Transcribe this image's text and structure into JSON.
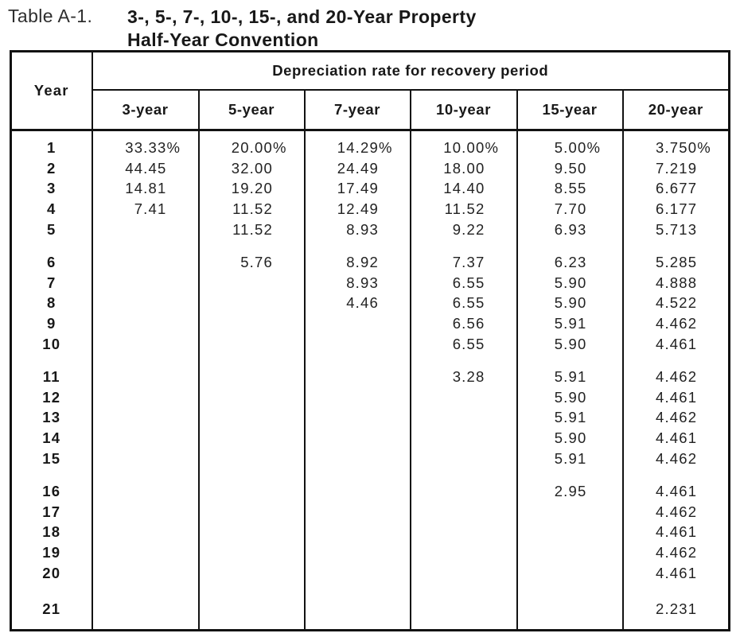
{
  "page": {
    "background": "#ffffff",
    "text_color": "#1f1f1f",
    "border_color": "#121212"
  },
  "title": {
    "label": "Table A-1.",
    "line1": "3-, 5-, 7-, 10-, 15-, and 20-Year Property",
    "line2": "Half-Year Convention"
  },
  "table": {
    "year_header": "Year",
    "span_header": "Depreciation rate for recovery period",
    "columns": [
      "3-year",
      "5-year",
      "7-year",
      "10-year",
      "15-year",
      "20-year"
    ],
    "column_align_widths": [
      "w5",
      "w5",
      "w5",
      "w5",
      "w4",
      "w5"
    ],
    "groups": [
      [
        {
          "year": "1",
          "values": [
            "33.33%",
            "20.00%",
            "14.29%",
            "10.00%",
            "5.00%",
            "3.750%"
          ]
        },
        {
          "year": "2",
          "values": [
            "44.45",
            "32.00",
            "24.49",
            "18.00",
            "9.50",
            "7.219"
          ]
        },
        {
          "year": "3",
          "values": [
            "14.81",
            "19.20",
            "17.49",
            "14.40",
            "8.55",
            "6.677"
          ]
        },
        {
          "year": "4",
          "values": [
            "7.41",
            "11.52",
            "12.49",
            "11.52",
            "7.70",
            "6.177"
          ]
        },
        {
          "year": "5",
          "values": [
            "",
            "11.52",
            "8.93",
            "9.22",
            "6.93",
            "5.713"
          ]
        }
      ],
      [
        {
          "year": "6",
          "values": [
            "",
            "5.76",
            "8.92",
            "7.37",
            "6.23",
            "5.285"
          ]
        },
        {
          "year": "7",
          "values": [
            "",
            "",
            "8.93",
            "6.55",
            "5.90",
            "4.888"
          ]
        },
        {
          "year": "8",
          "values": [
            "",
            "",
            "4.46",
            "6.55",
            "5.90",
            "4.522"
          ]
        },
        {
          "year": "9",
          "values": [
            "",
            "",
            "",
            "6.56",
            "5.91",
            "4.462"
          ]
        },
        {
          "year": "10",
          "values": [
            "",
            "",
            "",
            "6.55",
            "5.90",
            "4.461"
          ]
        }
      ],
      [
        {
          "year": "11",
          "values": [
            "",
            "",
            "",
            "3.28",
            "5.91",
            "4.462"
          ]
        },
        {
          "year": "12",
          "values": [
            "",
            "",
            "",
            "",
            "5.90",
            "4.461"
          ]
        },
        {
          "year": "13",
          "values": [
            "",
            "",
            "",
            "",
            "5.91",
            "4.462"
          ]
        },
        {
          "year": "14",
          "values": [
            "",
            "",
            "",
            "",
            "5.90",
            "4.461"
          ]
        },
        {
          "year": "15",
          "values": [
            "",
            "",
            "",
            "",
            "5.91",
            "4.462"
          ]
        }
      ],
      [
        {
          "year": "16",
          "values": [
            "",
            "",
            "",
            "",
            "2.95",
            "4.461"
          ]
        },
        {
          "year": "17",
          "values": [
            "",
            "",
            "",
            "",
            "",
            "4.462"
          ]
        },
        {
          "year": "18",
          "values": [
            "",
            "",
            "",
            "",
            "",
            "4.461"
          ]
        },
        {
          "year": "19",
          "values": [
            "",
            "",
            "",
            "",
            "",
            "4.462"
          ]
        },
        {
          "year": "20",
          "values": [
            "",
            "",
            "",
            "",
            "",
            "4.461"
          ]
        }
      ],
      [
        {
          "year": "21",
          "values": [
            "",
            "",
            "",
            "",
            "",
            "2.231"
          ]
        }
      ]
    ]
  }
}
